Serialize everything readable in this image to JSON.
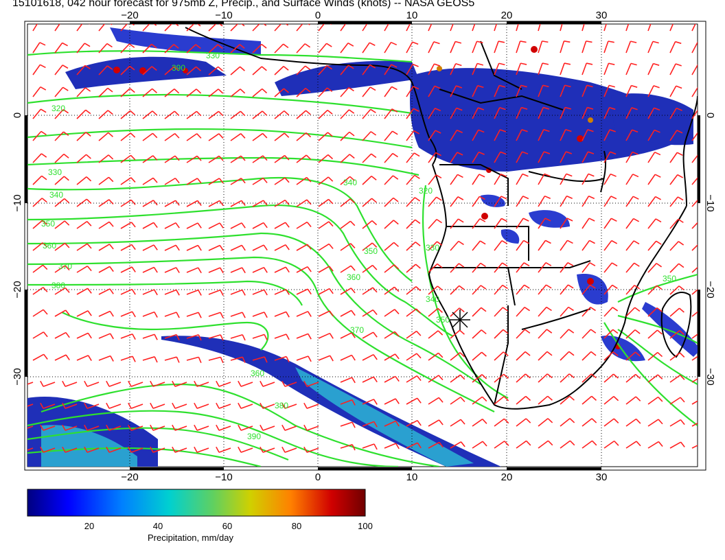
{
  "title": "15101618, 042 hour forecast for 975mb Z, Precip., and Surface Winds (knots) -- NASA GEOS5",
  "map": {
    "lon_range": [
      -30,
      40
    ],
    "lat_range": [
      -40,
      10
    ],
    "lon_ticks": [
      -20,
      -10,
      0,
      10,
      20,
      30
    ],
    "lat_ticks": [
      0,
      -10,
      -20,
      -30
    ],
    "lon_tick_labels": [
      "−20",
      "−10",
      "0",
      "10",
      "20",
      "30"
    ],
    "lat_tick_labels": [
      "0",
      "−10",
      "−20",
      "−30"
    ],
    "grid": true,
    "contour_color": "#2ee02e",
    "barb_color": "#ff2020",
    "coast_color": "#000000",
    "contour_labels": [
      "320",
      "330",
      "340",
      "350",
      "360",
      "370",
      "380",
      "390",
      "330",
      "340",
      "350",
      "360",
      "370",
      "320",
      "330",
      "340",
      "350",
      "360",
      "380",
      "390",
      "350"
    ],
    "marker": "station-star"
  },
  "colorbar": {
    "min": 0,
    "max": 100,
    "ticks": [
      "20",
      "40",
      "60",
      "80",
      "100"
    ],
    "caption": "Precipitation, mm/day",
    "colors": [
      "#000080",
      "#0000ff",
      "#0080ff",
      "#00d0d0",
      "#60d060",
      "#d0d000",
      "#ff8000",
      "#d00000",
      "#700000"
    ]
  }
}
